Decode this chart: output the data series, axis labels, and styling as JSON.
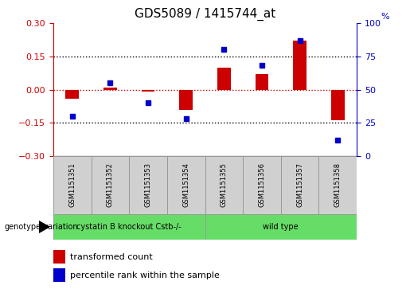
{
  "title": "GDS5089 / 1415744_at",
  "samples": [
    "GSM1151351",
    "GSM1151352",
    "GSM1151353",
    "GSM1151354",
    "GSM1151355",
    "GSM1151356",
    "GSM1151357",
    "GSM1151358"
  ],
  "red_values": [
    -0.04,
    0.01,
    -0.01,
    -0.09,
    0.1,
    0.07,
    0.22,
    -0.14
  ],
  "blue_values": [
    30,
    55,
    40,
    28,
    80,
    68,
    87,
    12
  ],
  "ylim_left": [
    -0.3,
    0.3
  ],
  "ylim_right": [
    0,
    100
  ],
  "yticks_left": [
    -0.3,
    -0.15,
    0.0,
    0.15,
    0.3
  ],
  "yticks_right": [
    0,
    25,
    50,
    75,
    100
  ],
  "hlines_dotted": [
    0.15,
    -0.15
  ],
  "hline_red": 0.0,
  "group1_label": "cystatin B knockout Cstb-/-",
  "group2_label": "wild type",
  "group1_count": 4,
  "group2_count": 4,
  "genotype_label": "genotype/variation",
  "legend_red": "transformed count",
  "legend_blue": "percentile rank within the sample",
  "red_color": "#cc0000",
  "blue_color": "#0000cc",
  "green_color": "#66dd66",
  "gray_color": "#d0d0d0",
  "bar_width": 0.35,
  "title_fontsize": 11,
  "tick_fontsize": 8,
  "sample_fontsize": 6,
  "legend_fontsize": 8
}
